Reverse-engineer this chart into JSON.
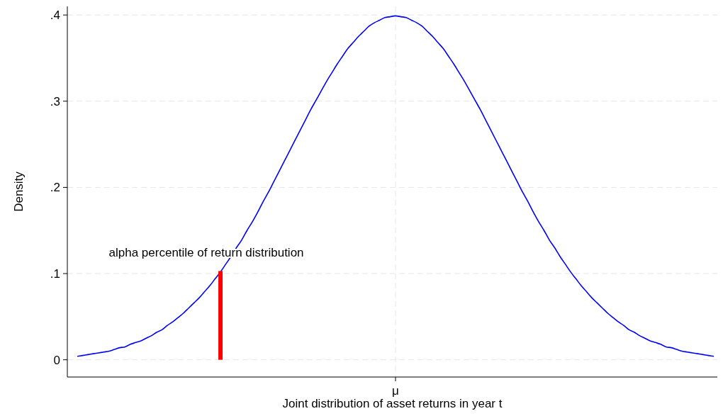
{
  "chart_data": {
    "type": "line",
    "xlabel": "Joint distribution of asset returns in year t",
    "ylabel": "Density",
    "categories": [
      null,
      null,
      null,
      null,
      null,
      null,
      null,
      null,
      null,
      null,
      null,
      null,
      null,
      null,
      null,
      null,
      null,
      null,
      null,
      null,
      null,
      null,
      null,
      null,
      null,
      null,
      null,
      null,
      null,
      null,
      null,
      null,
      null,
      null,
      null,
      null,
      null,
      null,
      null,
      null,
      null,
      null,
      null,
      null,
      null,
      null,
      null,
      null,
      null,
      null,
      null,
      null,
      null,
      null,
      null,
      null,
      null,
      null,
      null,
      null,
      "μ",
      null,
      null,
      null,
      null,
      null,
      null,
      null,
      null,
      null,
      null,
      null,
      null,
      null,
      null,
      null,
      null,
      null,
      null,
      null,
      null,
      null,
      null,
      null,
      null,
      null,
      null,
      null,
      null,
      null,
      null,
      null,
      null,
      null,
      null,
      null,
      null,
      null,
      null,
      null,
      null,
      null,
      null,
      null,
      null,
      null,
      null,
      null,
      null,
      null,
      null,
      null,
      null,
      null,
      null,
      null,
      null,
      null,
      null,
      null,
      null
    ],
    "series": [
      {
        "color": "#0000ff",
        "values": [
          0.004,
          0.005,
          0.006,
          0.007,
          0.008,
          0.009,
          0.01,
          0.012,
          0.014,
          0.015,
          0.018,
          0.02,
          0.022,
          0.025,
          0.028,
          0.032,
          0.035,
          0.04,
          0.044,
          0.049,
          0.054,
          0.06,
          0.066,
          0.072,
          0.079,
          0.086,
          0.094,
          0.102,
          0.111,
          0.12,
          0.13,
          0.139,
          0.15,
          0.16,
          0.171,
          0.183,
          0.194,
          0.206,
          0.218,
          0.23,
          0.242,
          0.254,
          0.266,
          0.278,
          0.29,
          0.301,
          0.312,
          0.323,
          0.333,
          0.343,
          0.352,
          0.361,
          0.368,
          0.375,
          0.381,
          0.387,
          0.391,
          0.394,
          0.397,
          0.398,
          0.399,
          0.398,
          0.397,
          0.394,
          0.391,
          0.387,
          0.381,
          0.375,
          0.368,
          0.361,
          0.352,
          0.343,
          0.333,
          0.323,
          0.312,
          0.301,
          0.29,
          0.278,
          0.266,
          0.254,
          0.242,
          0.23,
          0.218,
          0.206,
          0.194,
          0.183,
          0.171,
          0.16,
          0.15,
          0.139,
          0.13,
          0.12,
          0.111,
          0.102,
          0.094,
          0.086,
          0.079,
          0.072,
          0.066,
          0.06,
          0.054,
          0.049,
          0.044,
          0.04,
          0.035,
          0.032,
          0.028,
          0.025,
          0.022,
          0.02,
          0.018,
          0.015,
          0.014,
          0.012,
          0.01,
          0.009,
          0.008,
          0.007,
          0.006,
          0.005,
          0.004
        ]
      },
      {
        "type": "bar",
        "color": "#ff0000",
        "values": [
          null,
          null,
          null,
          null,
          null,
          null,
          null,
          null,
          null,
          null,
          null,
          null,
          null,
          null,
          null,
          null,
          null,
          null,
          null,
          null,
          null,
          null,
          null,
          null,
          null,
          null,
          null,
          0.103,
          null,
          null,
          null,
          null,
          null,
          null,
          null,
          null,
          null,
          null,
          null,
          null,
          null,
          null,
          null,
          null,
          null,
          null,
          null,
          null,
          null,
          null,
          null,
          null,
          null,
          null,
          null,
          null,
          null,
          null,
          null,
          null,
          null,
          null,
          null,
          null,
          null,
          null,
          null,
          null,
          null,
          null,
          null,
          null,
          null,
          null,
          null,
          null,
          null,
          null,
          null,
          null,
          null,
          null,
          null,
          null,
          null,
          null,
          null,
          null,
          null,
          null,
          null,
          null,
          null,
          null,
          null,
          null,
          null,
          null,
          null,
          null,
          null,
          null,
          null,
          null,
          null,
          null,
          null,
          null,
          null,
          null,
          null,
          null,
          null,
          null,
          null,
          null,
          null,
          null,
          null,
          null,
          null
        ]
      }
    ],
    "annotations": [
      "alpha percentile of return distribution"
    ],
    "ylim": [
      -0.02,
      0.41
    ],
    "yticks": [
      {
        "value": 0,
        "label": "0"
      },
      {
        "value": 0.1,
        "label": ".1"
      },
      {
        "value": 0.2,
        "label": ".2"
      },
      {
        "value": 0.3,
        "label": ".3"
      },
      {
        "value": 0.4,
        "label": ".4"
      }
    ],
    "grid": true
  }
}
